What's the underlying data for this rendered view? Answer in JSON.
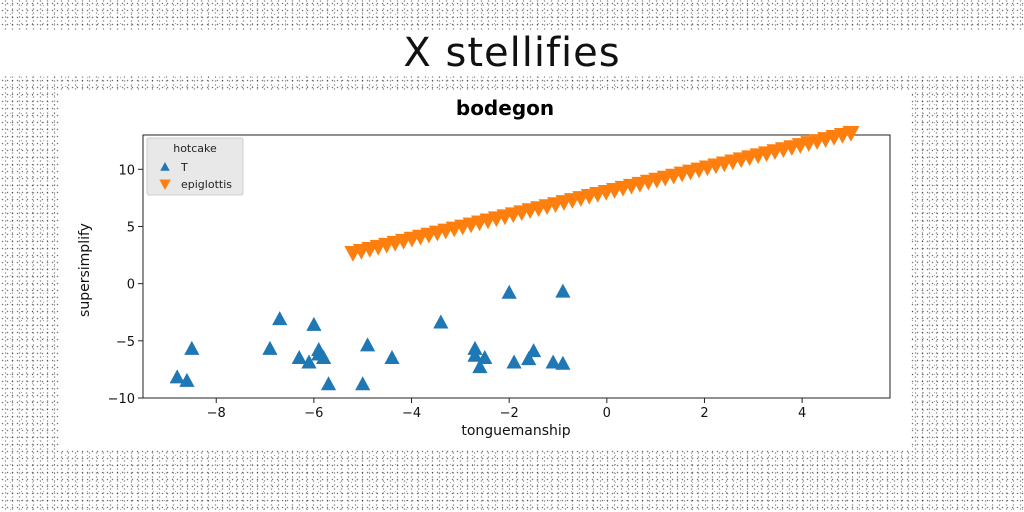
{
  "page_title": "X stellifies",
  "chart_data": {
    "type": "scatter",
    "title": "bodegon",
    "xlabel": "tonguemanship",
    "ylabel": "supersimplify",
    "xlim": [
      -9.5,
      5.8
    ],
    "ylim": [
      -10,
      13
    ],
    "x_ticks": [
      -8,
      -6,
      -4,
      -2,
      0,
      2,
      4
    ],
    "y_ticks": [
      -10,
      -5,
      0,
      5,
      10
    ],
    "x_tick_labels": [
      "−8",
      "−6",
      "−4",
      "−2",
      "0",
      "2",
      "4"
    ],
    "y_tick_labels": [
      "−10",
      "−5",
      "0",
      "5",
      "10"
    ],
    "grid": false,
    "legend": {
      "title": "hotcake",
      "position": "top-left"
    },
    "series": [
      {
        "name": "T",
        "marker": "triangle-up",
        "color": "#1f77b4",
        "points": [
          [
            -8.8,
            -8.2
          ],
          [
            -8.6,
            -8.5
          ],
          [
            -8.5,
            -5.7
          ],
          [
            -6.9,
            -5.7
          ],
          [
            -6.7,
            -3.1
          ],
          [
            -6.3,
            -6.5
          ],
          [
            -6.1,
            -6.9
          ],
          [
            -6.0,
            -3.6
          ],
          [
            -5.9,
            -6.2
          ],
          [
            -5.9,
            -5.8
          ],
          [
            -5.8,
            -6.5
          ],
          [
            -5.7,
            -8.8
          ],
          [
            -5.0,
            -8.8
          ],
          [
            -4.9,
            -5.4
          ],
          [
            -4.4,
            -6.5
          ],
          [
            -3.4,
            -3.4
          ],
          [
            -2.7,
            -5.7
          ],
          [
            -2.7,
            -6.3
          ],
          [
            -2.6,
            -7.3
          ],
          [
            -2.5,
            -6.5
          ],
          [
            -2.0,
            -0.8
          ],
          [
            -1.9,
            -6.9
          ],
          [
            -1.6,
            -6.6
          ],
          [
            -1.5,
            -5.9
          ],
          [
            -1.1,
            -6.9
          ],
          [
            -0.9,
            -0.7
          ],
          [
            -0.9,
            -7.0
          ]
        ]
      },
      {
        "name": "epiglottis",
        "marker": "triangle-down",
        "color": "#ff7f0e",
        "x_start": -5.2,
        "x_end": 5.0,
        "y_start": 2.7,
        "y_end": 13.2,
        "count": 60
      }
    ]
  }
}
